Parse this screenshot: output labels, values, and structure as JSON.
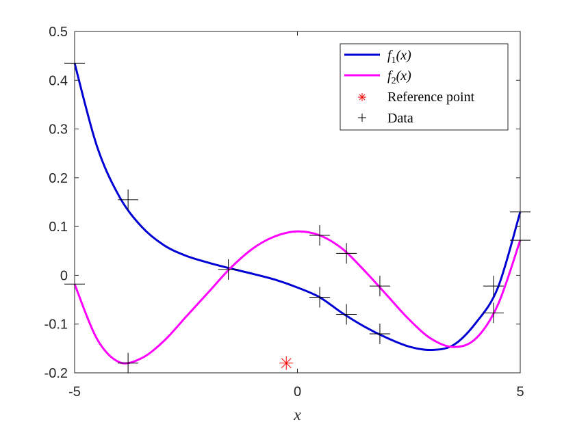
{
  "chart_data": {
    "type": "line",
    "title": "",
    "xlabel": "x",
    "ylabel": "",
    "xlim": [
      -5,
      5
    ],
    "ylim": [
      -0.2,
      0.5
    ],
    "xticks": [
      -5,
      0,
      5
    ],
    "xtick_labels": [
      "-5",
      "0",
      "5"
    ],
    "yticks": [
      -0.2,
      -0.1,
      0,
      0.1,
      0.2,
      0.3,
      0.4,
      0.5
    ],
    "ytick_labels": [
      "-0.2",
      "-0.1",
      "0",
      "0.1",
      "0.2",
      "0.3",
      "0.4",
      "0.5"
    ],
    "grid": false,
    "legend_position": "top-right",
    "series": [
      {
        "name": "f1(x)",
        "label_main": "f",
        "label_sub": "1",
        "label_arg": "(x)",
        "color": "#0000d4",
        "x": [
          -5,
          -4.5,
          -4,
          -3.5,
          -3,
          -2.5,
          -2,
          -1.5,
          -1,
          -0.5,
          0,
          0.5,
          1,
          1.5,
          2,
          2.5,
          3,
          3.5,
          4,
          4.5,
          5
        ],
        "y": [
          0.435,
          0.265,
          0.162,
          0.1,
          0.062,
          0.04,
          0.026,
          0.014,
          0.003,
          -0.009,
          -0.025,
          -0.045,
          -0.077,
          -0.105,
          -0.128,
          -0.146,
          -0.153,
          -0.143,
          -0.098,
          -0.025,
          0.13
        ]
      },
      {
        "name": "f2(x)",
        "label_main": "f",
        "label_sub": "2",
        "label_arg": "(x)",
        "color": "#ff00ff",
        "x": [
          -5,
          -4.5,
          -4,
          -3.5,
          -3,
          -2.5,
          -2,
          -1.5,
          -1,
          -0.5,
          0,
          0.5,
          1,
          1.5,
          2,
          2.5,
          3,
          3.5,
          4,
          4.5,
          5
        ],
        "y": [
          -0.018,
          -0.13,
          -0.178,
          -0.17,
          -0.135,
          -0.085,
          -0.035,
          0.015,
          0.055,
          0.08,
          0.09,
          0.082,
          0.055,
          0.01,
          -0.04,
          -0.09,
          -0.13,
          -0.147,
          -0.13,
          -0.06,
          0.072
        ]
      }
    ],
    "reference_point": {
      "name": "Reference point",
      "color": "#ff0000",
      "x": -0.25,
      "y": -0.18
    },
    "data_points": {
      "name": "Data",
      "color": "#000000",
      "x": [
        -5,
        -5,
        -3.8,
        -3.8,
        -1.55,
        0.5,
        0.5,
        1.1,
        1.1,
        1.85,
        1.85,
        4.4,
        4.4,
        5,
        5
      ],
      "y": [
        0.435,
        -0.018,
        0.155,
        -0.18,
        0.012,
        0.082,
        -0.045,
        0.045,
        -0.08,
        -0.022,
        -0.12,
        -0.022,
        -0.077,
        0.13,
        0.072
      ]
    }
  }
}
